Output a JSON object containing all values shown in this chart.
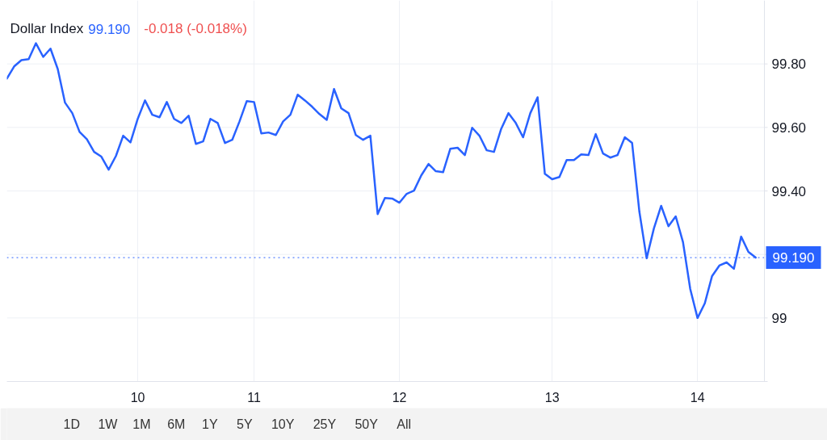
{
  "chart_data": {
    "type": "line",
    "title": "Dollar Index",
    "annotations": [
      "99.190",
      "-0.018 (-0.018%)",
      "1D",
      "1W",
      "1M",
      "6M",
      "1Y",
      "5Y",
      "10Y",
      "25Y",
      "50Y",
      "All"
    ],
    "categories": [
      null,
      null,
      null,
      null,
      null,
      null,
      null,
      null,
      null,
      null,
      null,
      null,
      null,
      null,
      null,
      null,
      null,
      null,
      "10",
      null,
      null,
      null,
      null,
      null,
      null,
      null,
      null,
      null,
      null,
      null,
      null,
      null,
      null,
      null,
      "11",
      null,
      null,
      null,
      null,
      null,
      null,
      null,
      null,
      null,
      null,
      null,
      null,
      null,
      null,
      null,
      null,
      null,
      null,
      null,
      "12",
      null,
      null,
      null,
      null,
      null,
      null,
      null,
      null,
      null,
      null,
      null,
      null,
      null,
      null,
      null,
      null,
      null,
      null,
      null,
      null,
      "13",
      null,
      null,
      null,
      null,
      null,
      null,
      null,
      null,
      null,
      null,
      null,
      null,
      null,
      null,
      null,
      null,
      null,
      null,
      null,
      "14",
      null,
      null,
      null,
      null,
      null,
      null,
      null,
      null
    ],
    "series": [
      {
        "color": "#2962ff",
        "values": [
          99.754,
          99.792,
          99.812,
          99.815,
          99.865,
          99.822,
          99.848,
          99.784,
          99.678,
          99.645,
          99.586,
          99.563,
          99.523,
          99.508,
          99.467,
          99.51,
          99.574,
          99.553,
          99.627,
          99.685,
          99.64,
          99.632,
          99.68,
          99.627,
          99.614,
          99.637,
          99.548,
          99.556,
          99.627,
          99.614,
          99.551,
          99.561,
          99.619,
          99.683,
          99.68,
          99.581,
          99.584,
          99.576,
          99.619,
          99.64,
          99.703,
          99.685,
          99.665,
          99.642,
          99.624,
          99.721,
          99.66,
          99.645,
          99.576,
          99.561,
          99.574,
          99.327,
          99.378,
          99.376,
          99.363,
          99.391,
          99.401,
          99.449,
          99.485,
          99.462,
          99.459,
          99.533,
          99.536,
          99.513,
          99.599,
          99.574,
          99.528,
          99.523,
          99.596,
          99.645,
          99.614,
          99.569,
          99.645,
          99.695,
          99.454,
          99.437,
          99.444,
          99.497,
          99.497,
          99.515,
          99.513,
          99.579,
          99.518,
          99.505,
          99.513,
          99.569,
          99.551,
          99.335,
          99.188,
          99.282,
          99.353,
          99.289,
          99.32,
          99.239,
          99.091,
          99.0,
          99.046,
          99.132,
          99.165,
          99.175,
          99.155,
          99.256,
          99.208,
          99.19
        ]
      }
    ],
    "ylim": [
      98.8,
      100.0
    ],
    "yticks": [
      99,
      {
        "value": 99.2,
        "label": null
      },
      {
        "value": 99.4,
        "label": "99.40"
      },
      {
        "value": 99.6,
        "label": "99.60"
      },
      {
        "value": 99.8,
        "label": "99.80"
      }
    ],
    "ref_lines": [
      {
        "axis": "y",
        "value": 99.19,
        "label": "99.190",
        "color": "#2962ff",
        "line_style": "dotted"
      }
    ],
    "grid": true
  }
}
